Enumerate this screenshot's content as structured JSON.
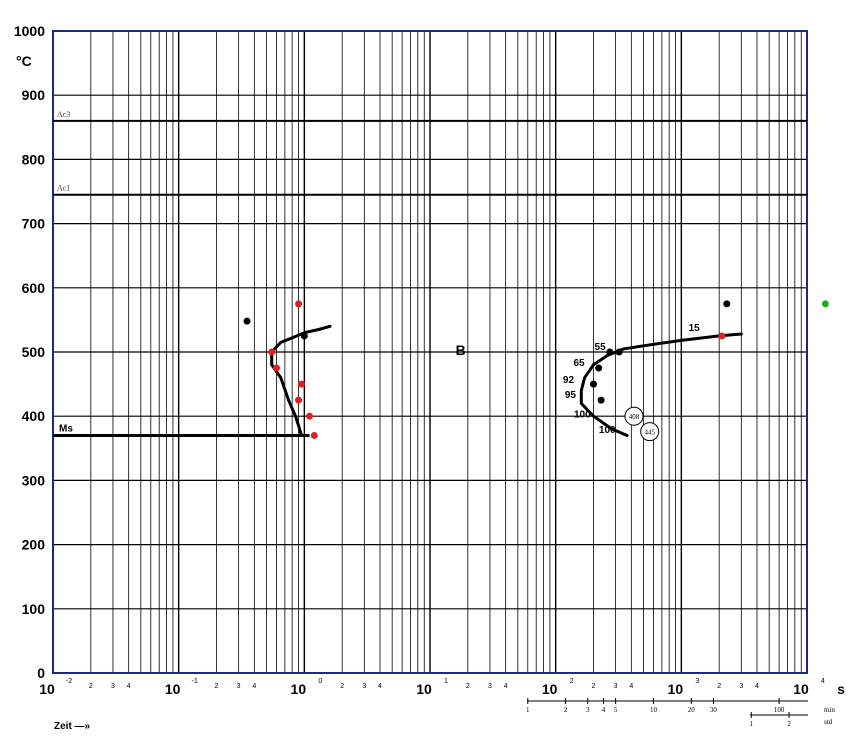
{
  "chart_data": {
    "type": "line",
    "title": "",
    "ylabel": "°C",
    "xlabel": "Zeit —»",
    "x_unit": "s",
    "xscale": "log",
    "xlim_exp": [
      -2,
      4
    ],
    "ylim": [
      0,
      1000
    ],
    "grid": true,
    "y_ticks": [
      0,
      100,
      200,
      300,
      400,
      500,
      600,
      700,
      800,
      900,
      1000
    ],
    "x_major_exponents": [
      "-2",
      "-1",
      "0",
      "1",
      "2",
      "3",
      "4"
    ],
    "x_major_base": "10",
    "x_minor_labels": [
      "2",
      "3",
      "4"
    ],
    "reference_lines": [
      {
        "name": "Ac3",
        "y": 860
      },
      {
        "name": "Ac1",
        "y": 745
      }
    ],
    "ms_line": {
      "name": "Ms",
      "y": 370,
      "x_from": 0.01,
      "x_to": 1.1
    },
    "series": [
      {
        "name": "left-curve",
        "points": [
          [
            0.95,
            370
          ],
          [
            0.9,
            385
          ],
          [
            0.85,
            400
          ],
          [
            0.75,
            425
          ],
          [
            0.65,
            460
          ],
          [
            0.55,
            480
          ],
          [
            0.55,
            500
          ],
          [
            0.65,
            515
          ],
          [
            0.8,
            522
          ],
          [
            1.0,
            530
          ],
          [
            1.3,
            535
          ],
          [
            1.6,
            540
          ]
        ]
      },
      {
        "name": "B-curve",
        "points": [
          [
            370,
            370
          ],
          [
            280,
            380
          ],
          [
            200,
            400
          ],
          [
            160,
            420
          ],
          [
            160,
            440
          ],
          [
            170,
            460
          ],
          [
            200,
            480
          ],
          [
            260,
            495
          ],
          [
            350,
            505
          ],
          [
            600,
            512
          ],
          [
            1000,
            518
          ],
          [
            2000,
            525
          ],
          [
            3000,
            528
          ]
        ]
      }
    ],
    "red_points": [
      [
        0.9,
        575
      ],
      [
        0.55,
        500
      ],
      [
        0.6,
        475
      ],
      [
        0.95,
        450
      ],
      [
        0.9,
        425
      ],
      [
        1.1,
        400
      ],
      [
        1.2,
        370
      ],
      [
        2100,
        525
      ]
    ],
    "black_points": [
      [
        0.35,
        548
      ],
      [
        1.0,
        525
      ],
      [
        230,
        425
      ],
      [
        200,
        450
      ],
      [
        220,
        475
      ],
      [
        270,
        500
      ],
      [
        320,
        500
      ],
      [
        400,
        398
      ],
      [
        520,
        375
      ],
      [
        2300,
        575
      ]
    ],
    "green_points": [
      [
        14000,
        575
      ]
    ],
    "region_label": "B",
    "annotations": [
      {
        "text": "15",
        "x": 1400,
        "y": 533
      },
      {
        "text": "55",
        "x": 250,
        "y": 503
      },
      {
        "text": "65",
        "x": 170,
        "y": 478
      },
      {
        "text": "92",
        "x": 140,
        "y": 452
      },
      {
        "text": "95",
        "x": 145,
        "y": 428
      },
      {
        "text": "100",
        "x": 190,
        "y": 398
      },
      {
        "text": "100",
        "x": 300,
        "y": 374
      }
    ],
    "hardness_circles": [
      {
        "text": "408",
        "x": 420,
        "y": 400
      },
      {
        "text": "445",
        "x": 560,
        "y": 376
      }
    ],
    "min_scale": {
      "label": "min",
      "ticks": [
        "1",
        "2",
        "3",
        "4",
        "5",
        "10",
        "20",
        "30",
        "100"
      ]
    },
    "std_scale": {
      "label": "std",
      "ticks": [
        "1",
        "2"
      ]
    }
  }
}
